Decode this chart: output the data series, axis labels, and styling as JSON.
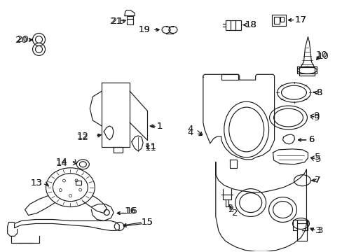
{
  "bg_color": "#ffffff",
  "line_color": "#1a1a1a",
  "figsize": [
    4.89,
    3.6
  ],
  "dpi": 100,
  "font_size": 9.5,
  "lw": 0.85
}
